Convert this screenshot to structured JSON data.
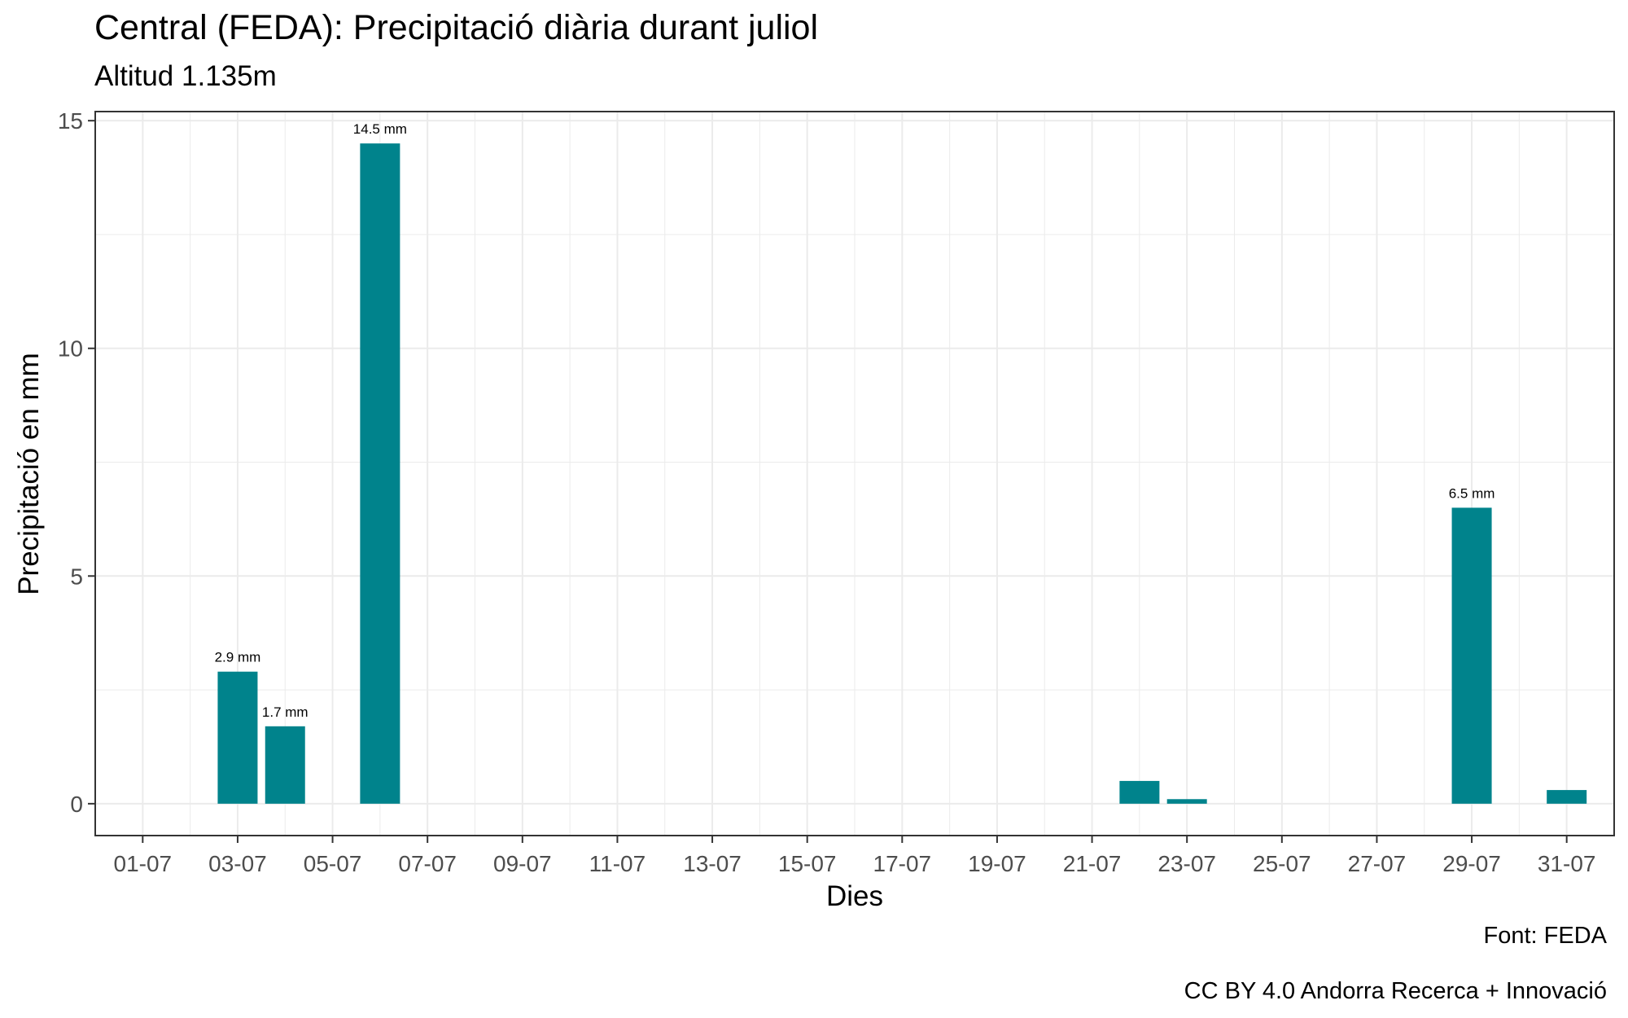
{
  "title": "Central (FEDA): Precipitació diària durant juliol",
  "subtitle": "Altitud 1.135m",
  "caption": {
    "source": "Font: FEDA",
    "license": "CC BY 4.0 Andorra Recerca + Innovació"
  },
  "colors": {
    "bar": "#00838C",
    "panel_border": "#333333",
    "grid": "#EBEBEB"
  },
  "chart_data": {
    "type": "bar",
    "title": "Central (FEDA): Precipitació diària durant juliol",
    "subtitle": "Altitud 1.135m",
    "xlabel": "Dies",
    "ylabel": "Precipitació en mm",
    "ylim": [
      -0.7,
      15.2
    ],
    "xlim": [
      0,
      32
    ],
    "grid": true,
    "legend": "none",
    "y_ticks": [
      0,
      5,
      10,
      15
    ],
    "x_ticks": [
      {
        "day": 1,
        "label": "01-07"
      },
      {
        "day": 3,
        "label": "03-07"
      },
      {
        "day": 5,
        "label": "05-07"
      },
      {
        "day": 7,
        "label": "07-07"
      },
      {
        "day": 9,
        "label": "09-07"
      },
      {
        "day": 11,
        "label": "11-07"
      },
      {
        "day": 13,
        "label": "13-07"
      },
      {
        "day": 15,
        "label": "15-07"
      },
      {
        "day": 17,
        "label": "17-07"
      },
      {
        "day": 19,
        "label": "19-07"
      },
      {
        "day": 21,
        "label": "21-07"
      },
      {
        "day": 23,
        "label": "23-07"
      },
      {
        "day": 25,
        "label": "25-07"
      },
      {
        "day": 27,
        "label": "27-07"
      },
      {
        "day": 29,
        "label": "29-07"
      },
      {
        "day": 31,
        "label": "31-07"
      }
    ],
    "bars": [
      {
        "day": 3,
        "value": 2.9,
        "label": "2.9 mm"
      },
      {
        "day": 4,
        "value": 1.7,
        "label": "1.7 mm"
      },
      {
        "day": 6,
        "value": 14.5,
        "label": "14.5 mm"
      },
      {
        "day": 22,
        "value": 0.5,
        "label": ""
      },
      {
        "day": 23,
        "value": 0.1,
        "label": ""
      },
      {
        "day": 29,
        "value": 6.5,
        "label": "6.5 mm"
      },
      {
        "day": 31,
        "value": 0.3,
        "label": ""
      }
    ]
  }
}
